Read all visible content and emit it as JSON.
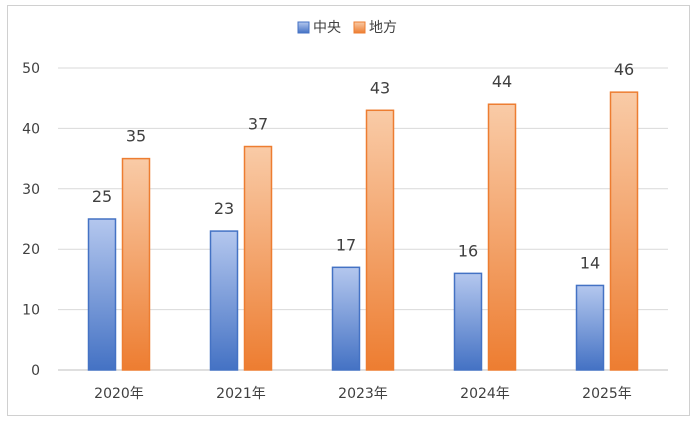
{
  "chart_data": {
    "type": "bar",
    "categories": [
      "2020年",
      "2021年",
      "2023年",
      "2024年",
      "2025年"
    ],
    "series": [
      {
        "name": "中央",
        "values": [
          25,
          23,
          17,
          16,
          14
        ],
        "color": "#4472c4"
      },
      {
        "name": "地方",
        "values": [
          35,
          37,
          43,
          44,
          46
        ],
        "color": "#ed7d31"
      }
    ],
    "ylim": [
      0,
      50
    ],
    "yticks": [
      0,
      10,
      20,
      30,
      40,
      50
    ],
    "grid": true,
    "legend_position": "top-center",
    "data_labels": true
  }
}
